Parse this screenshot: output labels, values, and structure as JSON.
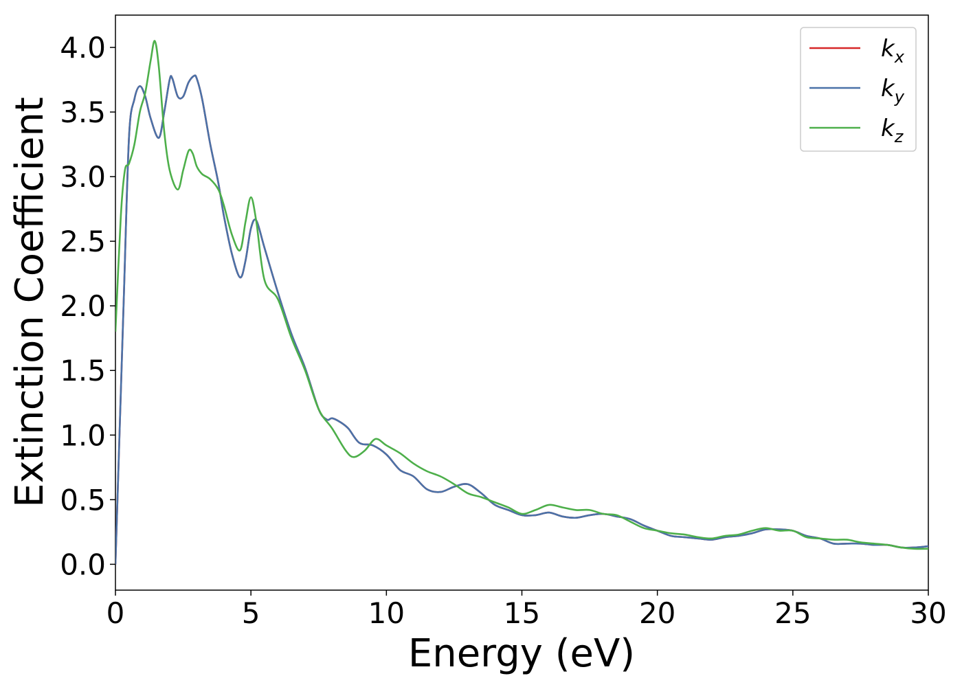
{
  "chart_data": {
    "type": "line",
    "title": "",
    "xlabel": "Energy (eV)",
    "ylabel": "Extinction Coefficient",
    "xlim": [
      0,
      30
    ],
    "ylim": [
      -0.2,
      4.25
    ],
    "xticks": [
      0,
      5,
      10,
      15,
      20,
      25,
      30
    ],
    "xtick_labels": [
      "0",
      "5",
      "10",
      "15",
      "20",
      "25",
      "30"
    ],
    "yticks": [
      0.0,
      0.5,
      1.0,
      1.5,
      2.0,
      2.5,
      3.0,
      3.5,
      4.0
    ],
    "ytick_labels": [
      "0.0",
      "0.5",
      "1.0",
      "1.5",
      "2.0",
      "2.5",
      "3.0",
      "3.5",
      "4.0"
    ],
    "grid": false,
    "legend_position": "top-right",
    "series": [
      {
        "name": "k_x",
        "legend_base": "k",
        "legend_sub": "x",
        "color": "#d62728",
        "x": [
          0,
          0.3,
          0.5,
          0.7,
          0.9,
          1.1,
          1.3,
          1.6,
          1.8,
          2.0,
          2.1,
          2.3,
          2.5,
          2.7,
          2.9,
          3.0,
          3.2,
          3.5,
          3.8,
          4.0,
          4.3,
          4.6,
          4.8,
          5.0,
          5.2,
          5.5,
          6.0,
          6.5,
          7.0,
          7.5,
          7.8,
          8.0,
          8.3,
          8.6,
          9.0,
          9.5,
          10.0,
          10.5,
          11.0,
          11.5,
          12.0,
          12.5,
          13.0,
          13.5,
          14.0,
          14.5,
          15.0,
          15.5,
          16.0,
          16.5,
          17.0,
          17.5,
          18.0,
          18.5,
          19.0,
          19.5,
          20.0,
          20.5,
          21.0,
          21.5,
          22.0,
          22.5,
          23.0,
          23.5,
          24.0,
          24.5,
          25.0,
          25.5,
          26.0,
          26.5,
          27.0,
          27.5,
          28.0,
          28.5,
          29.0,
          29.5,
          30.0
        ],
        "y": [
          0.0,
          2.0,
          3.3,
          3.6,
          3.7,
          3.62,
          3.45,
          3.3,
          3.5,
          3.75,
          3.76,
          3.62,
          3.62,
          3.73,
          3.78,
          3.76,
          3.6,
          3.25,
          2.95,
          2.7,
          2.4,
          2.22,
          2.35,
          2.6,
          2.66,
          2.45,
          2.1,
          1.78,
          1.52,
          1.2,
          1.12,
          1.13,
          1.1,
          1.05,
          0.94,
          0.92,
          0.85,
          0.73,
          0.68,
          0.58,
          0.56,
          0.6,
          0.62,
          0.55,
          0.46,
          0.42,
          0.38,
          0.38,
          0.4,
          0.37,
          0.36,
          0.38,
          0.39,
          0.37,
          0.35,
          0.3,
          0.26,
          0.22,
          0.21,
          0.2,
          0.19,
          0.21,
          0.22,
          0.24,
          0.27,
          0.27,
          0.26,
          0.22,
          0.2,
          0.16,
          0.16,
          0.16,
          0.15,
          0.15,
          0.13,
          0.13,
          0.14
        ]
      },
      {
        "name": "k_y",
        "legend_base": "k",
        "legend_sub": "y",
        "color": "#4a72a8",
        "x": [
          0,
          0.3,
          0.5,
          0.7,
          0.9,
          1.1,
          1.3,
          1.6,
          1.8,
          2.0,
          2.1,
          2.3,
          2.5,
          2.7,
          2.9,
          3.0,
          3.2,
          3.5,
          3.8,
          4.0,
          4.3,
          4.6,
          4.8,
          5.0,
          5.2,
          5.5,
          6.0,
          6.5,
          7.0,
          7.5,
          7.8,
          8.0,
          8.3,
          8.6,
          9.0,
          9.5,
          10.0,
          10.5,
          11.0,
          11.5,
          12.0,
          12.5,
          13.0,
          13.5,
          14.0,
          14.5,
          15.0,
          15.5,
          16.0,
          16.5,
          17.0,
          17.5,
          18.0,
          18.5,
          19.0,
          19.5,
          20.0,
          20.5,
          21.0,
          21.5,
          22.0,
          22.5,
          23.0,
          23.5,
          24.0,
          24.5,
          25.0,
          25.5,
          26.0,
          26.5,
          27.0,
          27.5,
          28.0,
          28.5,
          29.0,
          29.5,
          30.0
        ],
        "y": [
          0.0,
          2.0,
          3.3,
          3.6,
          3.7,
          3.62,
          3.45,
          3.3,
          3.5,
          3.75,
          3.76,
          3.62,
          3.62,
          3.73,
          3.78,
          3.76,
          3.6,
          3.25,
          2.95,
          2.7,
          2.4,
          2.22,
          2.35,
          2.6,
          2.66,
          2.45,
          2.1,
          1.78,
          1.52,
          1.2,
          1.12,
          1.13,
          1.1,
          1.05,
          0.94,
          0.92,
          0.85,
          0.73,
          0.68,
          0.58,
          0.56,
          0.6,
          0.62,
          0.55,
          0.46,
          0.42,
          0.38,
          0.38,
          0.4,
          0.37,
          0.36,
          0.38,
          0.39,
          0.37,
          0.35,
          0.3,
          0.26,
          0.22,
          0.21,
          0.2,
          0.19,
          0.21,
          0.22,
          0.24,
          0.27,
          0.27,
          0.26,
          0.22,
          0.2,
          0.16,
          0.16,
          0.16,
          0.15,
          0.15,
          0.13,
          0.13,
          0.14
        ]
      },
      {
        "name": "k_z",
        "legend_base": "k",
        "legend_sub": "z",
        "color": "#4daf4a",
        "x": [
          0,
          0.2,
          0.35,
          0.5,
          0.7,
          0.9,
          1.1,
          1.3,
          1.45,
          1.6,
          1.8,
          2.0,
          2.3,
          2.5,
          2.7,
          2.85,
          3.0,
          3.2,
          3.5,
          3.8,
          4.0,
          4.3,
          4.6,
          4.8,
          5.0,
          5.2,
          5.5,
          6.0,
          6.5,
          7.0,
          7.5,
          8.0,
          8.5,
          8.8,
          9.2,
          9.6,
          10.0,
          10.5,
          11.0,
          11.5,
          12.0,
          12.5,
          13.0,
          13.5,
          14.0,
          14.5,
          15.0,
          15.5,
          16.0,
          16.5,
          17.0,
          17.5,
          18.0,
          18.5,
          19.0,
          19.5,
          20.0,
          20.5,
          21.0,
          21.5,
          22.0,
          22.5,
          23.0,
          23.5,
          24.0,
          24.5,
          25.0,
          25.5,
          26.0,
          26.5,
          27.0,
          27.5,
          28.0,
          28.5,
          29.0,
          29.5,
          30.0
        ],
        "y": [
          1.8,
          2.7,
          3.05,
          3.1,
          3.25,
          3.5,
          3.65,
          3.9,
          4.05,
          3.85,
          3.35,
          3.05,
          2.9,
          3.05,
          3.2,
          3.18,
          3.08,
          3.02,
          2.98,
          2.9,
          2.78,
          2.55,
          2.43,
          2.65,
          2.84,
          2.65,
          2.2,
          2.05,
          1.75,
          1.5,
          1.2,
          1.05,
          0.88,
          0.83,
          0.88,
          0.97,
          0.92,
          0.86,
          0.78,
          0.72,
          0.68,
          0.62,
          0.55,
          0.52,
          0.48,
          0.44,
          0.39,
          0.42,
          0.46,
          0.44,
          0.42,
          0.42,
          0.39,
          0.38,
          0.33,
          0.28,
          0.26,
          0.24,
          0.23,
          0.21,
          0.2,
          0.22,
          0.23,
          0.26,
          0.28,
          0.26,
          0.26,
          0.21,
          0.2,
          0.19,
          0.19,
          0.17,
          0.16,
          0.15,
          0.13,
          0.12,
          0.12
        ]
      }
    ]
  }
}
